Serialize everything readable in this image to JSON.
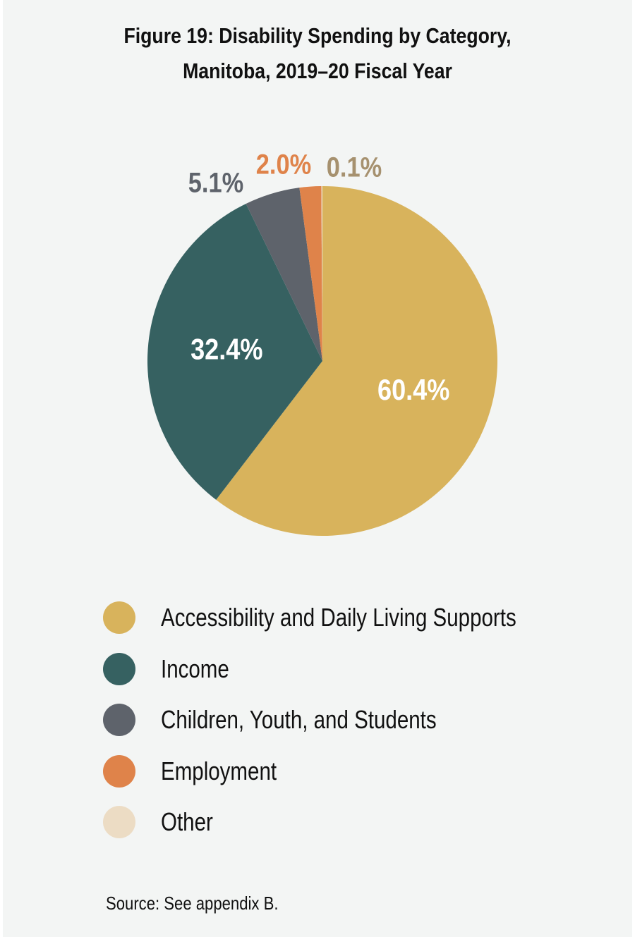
{
  "chart_data": {
    "type": "pie",
    "title_lines": [
      "Figure 19: Disability Spending by Category,",
      "Manitoba, 2019–20 Fiscal Year"
    ],
    "start_angle_deg": 0,
    "direction": "clockwise",
    "slices": [
      {
        "name": "Accessibility and Daily Living Supports",
        "value": 60.4,
        "label": "60.4%",
        "color": "#d8b35c",
        "label_color": "#ffffff",
        "label_placement": "inside"
      },
      {
        "name": "Income",
        "value": 32.4,
        "label": "32.4%",
        "color": "#366161",
        "label_color": "#ffffff",
        "label_placement": "inside"
      },
      {
        "name": "Children, Youth, and Students",
        "value": 5.1,
        "label": "5.1%",
        "color": "#5e636b",
        "label_color": "#5e636b",
        "label_placement": "outside"
      },
      {
        "name": "Employment",
        "value": 2.0,
        "label": "2.0%",
        "color": "#df834a",
        "label_color": "#df834a",
        "label_placement": "outside"
      },
      {
        "name": "Other",
        "value": 0.1,
        "label": "0.1%",
        "color": "#ecdcc4",
        "label_color": "#a6916f",
        "label_placement": "outside"
      }
    ],
    "legend_placement": "bottom"
  },
  "source": "Source: See appendix B."
}
